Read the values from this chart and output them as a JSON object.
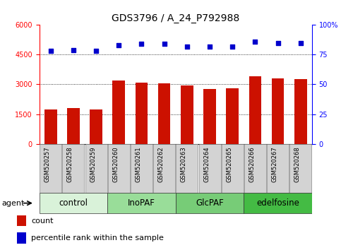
{
  "title": "GDS3796 / A_24_P792988",
  "samples": [
    "GSM520257",
    "GSM520258",
    "GSM520259",
    "GSM520260",
    "GSM520261",
    "GSM520262",
    "GSM520263",
    "GSM520264",
    "GSM520265",
    "GSM520266",
    "GSM520267",
    "GSM520268"
  ],
  "counts": [
    1750,
    1820,
    1720,
    3200,
    3100,
    3050,
    2950,
    2750,
    2820,
    3400,
    3300,
    3250
  ],
  "percentile_ranks": [
    78,
    79,
    78,
    83,
    84,
    84,
    82,
    82,
    82,
    86,
    85,
    85
  ],
  "groups": [
    {
      "label": "control",
      "start": 0,
      "end": 3,
      "color": "#d9f2d9"
    },
    {
      "label": "InoPAF",
      "start": 3,
      "end": 6,
      "color": "#99dd99"
    },
    {
      "label": "GlcPAF",
      "start": 6,
      "end": 9,
      "color": "#77cc77"
    },
    {
      "label": "edelfosine",
      "start": 9,
      "end": 12,
      "color": "#44bb44"
    }
  ],
  "bar_color": "#cc1100",
  "dot_color": "#0000cc",
  "ylim_left": [
    0,
    6000
  ],
  "ylim_right": [
    0,
    100
  ],
  "yticks_left": [
    0,
    1500,
    3000,
    4500,
    6000
  ],
  "yticks_right": [
    0,
    25,
    50,
    75,
    100
  ],
  "grid_values": [
    1500,
    3000,
    4500
  ],
  "agent_label": "agent",
  "legend_count_label": "count",
  "legend_pct_label": "percentile rank within the sample",
  "title_fontsize": 10,
  "tick_fontsize": 7,
  "sample_fontsize": 6,
  "group_label_fontsize": 8.5
}
